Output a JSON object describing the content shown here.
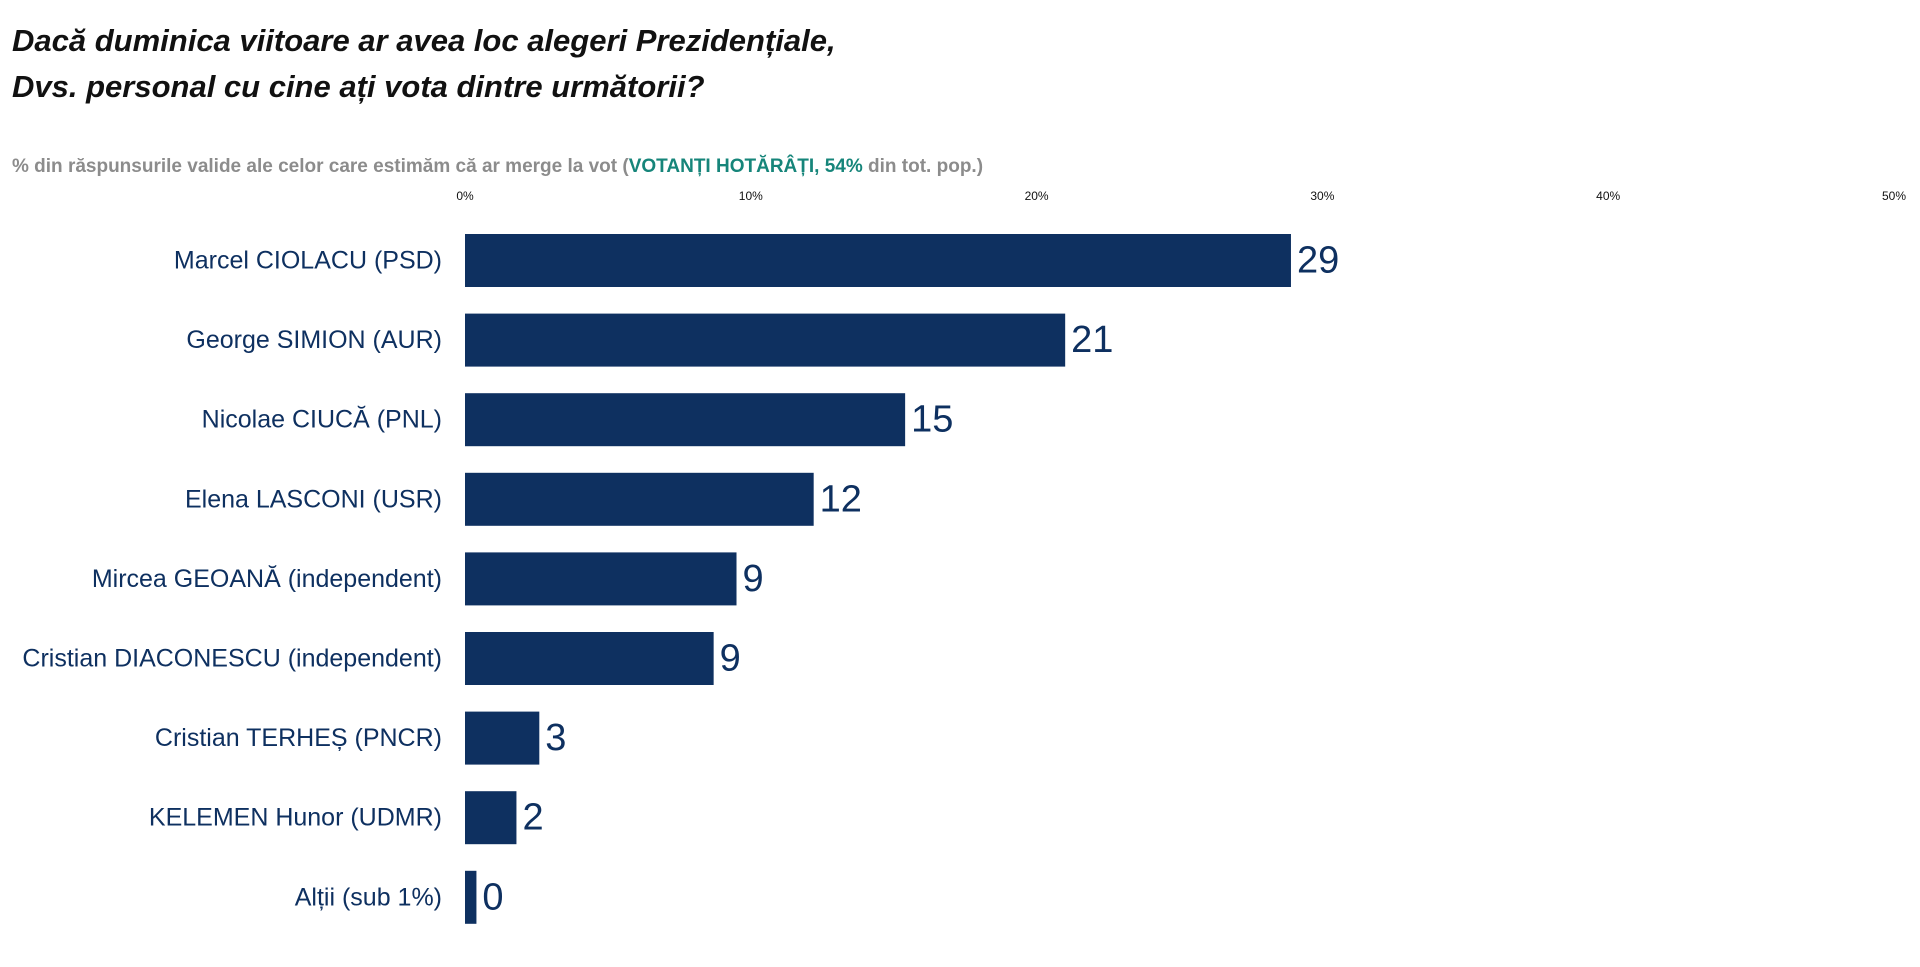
{
  "chart_data": {
    "type": "bar",
    "orientation": "horizontal",
    "title_lines": [
      "Dacă duminica viitoare ar avea loc alegeri Prezidențiale,",
      "Dvs. personal cu cine ați vota dintre următorii?"
    ],
    "subtitle": {
      "prefix": "% din răspunsurile valide ale celor care estimăm că ar merge la vot (",
      "highlight": "VOTANȚI HOTĂRÂȚI, 54%",
      "suffix": " din tot. pop.)"
    },
    "categories": [
      "Marcel CIOLACU (PSD)",
      "George SIMION (AUR)",
      "Nicolae CIUCĂ (PNL)",
      "Elena LASCONI (USR)",
      "Mircea GEOANĂ (independent)",
      "Cristian DIACONESCU (independent)",
      "Cristian TERHEȘ (PNCR)",
      "KELEMEN Hunor (UDMR)",
      "Alții (sub 1%)"
    ],
    "values": [
      29,
      21,
      15,
      12,
      9,
      9,
      3,
      2,
      0
    ],
    "bar_values": [
      28.9,
      21.0,
      15.4,
      12.2,
      9.5,
      8.7,
      2.6,
      1.8,
      0.4
    ],
    "xlim": [
      0,
      50
    ],
    "x_ticks": [
      "0%",
      "10%",
      "20%",
      "30%",
      "40%",
      "50%"
    ],
    "grid": false,
    "legend": "none",
    "bar_color": "#0e3060",
    "highlight_color": "#16857a"
  }
}
